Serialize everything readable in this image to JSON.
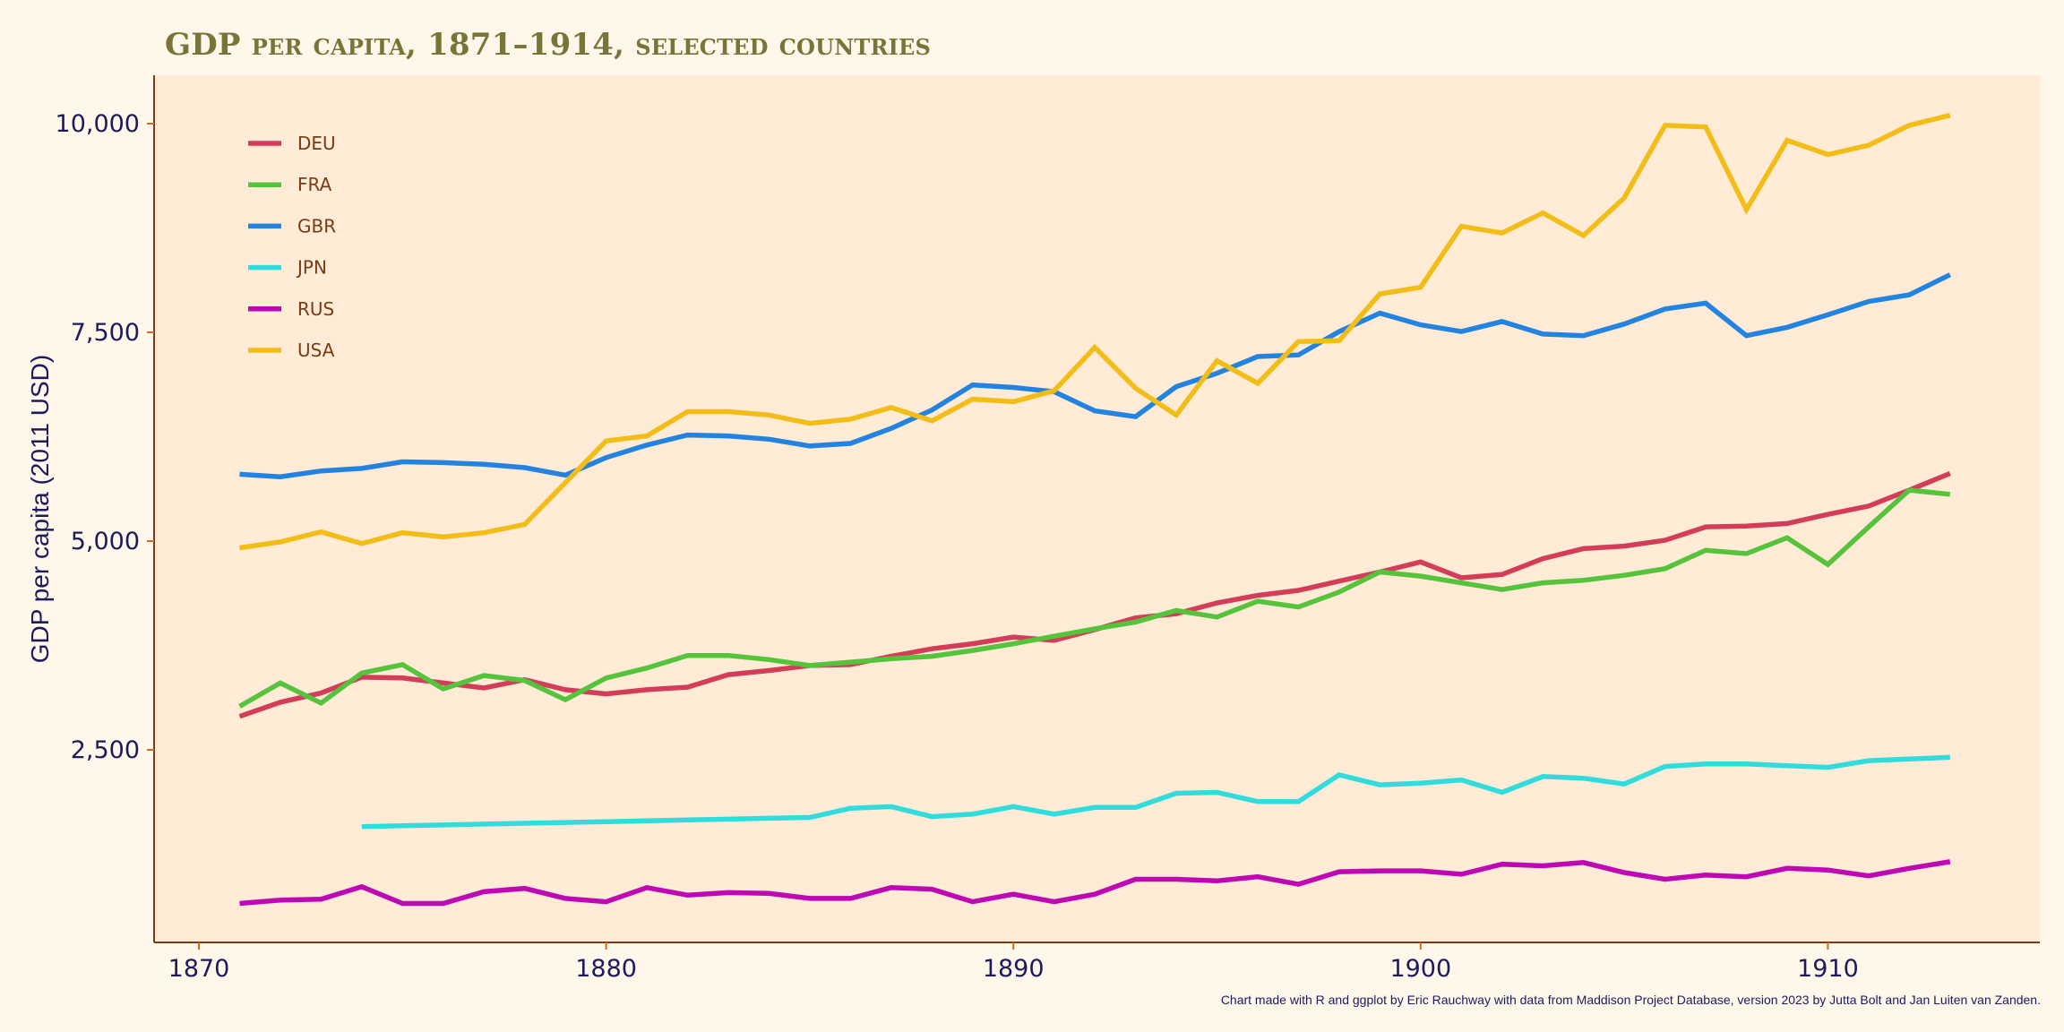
{
  "chart_data": {
    "type": "line",
    "title": "GDP per capita, 1871–1914, selected countries",
    "xlabel": "",
    "ylabel": "GDP per capita (2011 USD)",
    "xlim": [
      1868.9,
      1914.2
    ],
    "ylim": [
      0,
      10580
    ],
    "x_ticks": [
      1870,
      1880,
      1890,
      1900,
      1910
    ],
    "x_tick_labels": [
      "1870",
      "1880",
      "1890",
      "1900",
      "1910"
    ],
    "y_ticks": [
      2500,
      5000,
      7500,
      10000
    ],
    "y_tick_labels": [
      "2,500",
      "5,000",
      "7,500",
      "10,000"
    ],
    "grid": false,
    "legend_position": "top-left",
    "caption": "Chart made with R and ggplot by Eric Rauchway with data from Maddison Project Database, version 2023 by Jutta Bolt and Jan Luiten van Zanden.",
    "series": [
      {
        "name": "DEU",
        "color": "#d43d5a",
        "x": [
          1871,
          1872,
          1873,
          1874,
          1875,
          1876,
          1877,
          1878,
          1879,
          1880,
          1881,
          1882,
          1883,
          1884,
          1885,
          1886,
          1887,
          1888,
          1889,
          1890,
          1891,
          1892,
          1893,
          1894,
          1895,
          1896,
          1897,
          1898,
          1899,
          1900,
          1901,
          1902,
          1903,
          1904,
          1905,
          1906,
          1907,
          1908,
          1909,
          1910,
          1911,
          1912,
          1913
        ],
        "values": [
          2900,
          3070,
          3180,
          3370,
          3360,
          3300,
          3240,
          3340,
          3220,
          3170,
          3220,
          3250,
          3400,
          3450,
          3510,
          3520,
          3620,
          3710,
          3770,
          3850,
          3810,
          3940,
          4080,
          4130,
          4260,
          4350,
          4410,
          4520,
          4630,
          4750,
          4560,
          4600,
          4790,
          4910,
          4940,
          5010,
          5170,
          5180,
          5210,
          5320,
          5420,
          5610,
          5810
        ]
      },
      {
        "name": "FRA",
        "color": "#55c43c",
        "x": [
          1871,
          1872,
          1873,
          1874,
          1875,
          1876,
          1877,
          1878,
          1879,
          1880,
          1881,
          1882,
          1883,
          1884,
          1885,
          1886,
          1887,
          1888,
          1889,
          1890,
          1891,
          1892,
          1893,
          1894,
          1895,
          1896,
          1897,
          1898,
          1899,
          1900,
          1901,
          1902,
          1903,
          1904,
          1905,
          1906,
          1907,
          1908,
          1909,
          1910,
          1911,
          1912,
          1913
        ],
        "values": [
          3020,
          3300,
          3060,
          3420,
          3520,
          3230,
          3390,
          3330,
          3100,
          3360,
          3480,
          3630,
          3630,
          3580,
          3510,
          3550,
          3590,
          3620,
          3690,
          3770,
          3860,
          3950,
          4030,
          4170,
          4090,
          4280,
          4210,
          4390,
          4630,
          4580,
          4500,
          4420,
          4500,
          4530,
          4590,
          4670,
          4890,
          4850,
          5040,
          4720,
          5170,
          5610,
          5560
        ]
      },
      {
        "name": "GBR",
        "color": "#2283e0",
        "x": [
          1871,
          1872,
          1873,
          1874,
          1875,
          1876,
          1877,
          1878,
          1879,
          1880,
          1881,
          1882,
          1883,
          1884,
          1885,
          1886,
          1887,
          1888,
          1889,
          1890,
          1891,
          1892,
          1893,
          1894,
          1895,
          1896,
          1897,
          1898,
          1899,
          1900,
          1901,
          1902,
          1903,
          1904,
          1905,
          1906,
          1907,
          1908,
          1909,
          1910,
          1911,
          1912,
          1913
        ],
        "values": [
          5800,
          5770,
          5840,
          5870,
          5950,
          5940,
          5920,
          5880,
          5790,
          6000,
          6150,
          6270,
          6260,
          6220,
          6140,
          6170,
          6350,
          6570,
          6870,
          6840,
          6790,
          6560,
          6490,
          6850,
          7010,
          7210,
          7230,
          7510,
          7730,
          7590,
          7510,
          7630,
          7480,
          7460,
          7600,
          7780,
          7850,
          7460,
          7560,
          7710,
          7870,
          7950,
          8190
        ]
      },
      {
        "name": "JPN",
        "color": "#30dcdc",
        "x": [
          1874,
          1875,
          1876,
          1877,
          1878,
          1879,
          1880,
          1881,
          1882,
          1883,
          1884,
          1885,
          1886,
          1887,
          1888,
          1889,
          1890,
          1891,
          1892,
          1893,
          1894,
          1895,
          1896,
          1897,
          1898,
          1899,
          1900,
          1901,
          1902,
          1903,
          1904,
          1905,
          1906,
          1907,
          1908,
          1909,
          1910,
          1911,
          1912,
          1913
        ],
        "values": [
          1580,
          1590,
          1600,
          1610,
          1620,
          1630,
          1640,
          1650,
          1660,
          1670,
          1680,
          1690,
          1800,
          1820,
          1700,
          1730,
          1820,
          1730,
          1810,
          1810,
          1980,
          1990,
          1880,
          1880,
          2200,
          2080,
          2100,
          2140,
          1990,
          2180,
          2160,
          2090,
          2300,
          2330,
          2330,
          2310,
          2290,
          2370,
          2390,
          2410
        ]
      },
      {
        "name": "RUS",
        "color": "#be08b4",
        "x": [
          1871,
          1872,
          1873,
          1874,
          1875,
          1876,
          1877,
          1878,
          1879,
          1880,
          1881,
          1882,
          1883,
          1884,
          1885,
          1886,
          1887,
          1888,
          1889,
          1890,
          1891,
          1892,
          1893,
          1894,
          1895,
          1896,
          1897,
          1898,
          1899,
          1900,
          1901,
          1902,
          1903,
          1904,
          1905,
          1906,
          1907,
          1908,
          1909,
          1910,
          1911,
          1912,
          1913
        ],
        "values": [
          660,
          700,
          710,
          860,
          660,
          660,
          800,
          840,
          720,
          680,
          850,
          760,
          790,
          780,
          720,
          720,
          850,
          830,
          680,
          770,
          680,
          770,
          950,
          950,
          930,
          980,
          890,
          1040,
          1050,
          1050,
          1010,
          1130,
          1110,
          1150,
          1030,
          950,
          1000,
          980,
          1080,
          1060,
          990,
          1080,
          1160
        ]
      },
      {
        "name": "USA",
        "color": "#f2bd17",
        "x": [
          1871,
          1872,
          1873,
          1874,
          1875,
          1876,
          1877,
          1878,
          1879,
          1880,
          1881,
          1882,
          1883,
          1884,
          1885,
          1886,
          1887,
          1888,
          1889,
          1890,
          1891,
          1892,
          1893,
          1894,
          1895,
          1896,
          1897,
          1898,
          1899,
          1900,
          1901,
          1902,
          1903,
          1904,
          1905,
          1906,
          1907,
          1908,
          1909,
          1910,
          1911,
          1912,
          1913
        ],
        "values": [
          4920,
          4990,
          5110,
          4970,
          5100,
          5050,
          5100,
          5200,
          5700,
          6200,
          6260,
          6550,
          6550,
          6510,
          6410,
          6460,
          6600,
          6440,
          6700,
          6670,
          6800,
          7320,
          6830,
          6510,
          7160,
          6890,
          7390,
          7400,
          7960,
          8040,
          8770,
          8690,
          8930,
          8660,
          9110,
          9980,
          9960,
          8970,
          9800,
          9630,
          9740,
          9980,
          10100
        ]
      }
    ]
  },
  "header": {
    "title": "GDP per capita, 1871–1914, selected countries"
  },
  "footer": {
    "caption": "Chart made with R and ggplot by Eric Rauchway with data from Maddison Project Database, version 2023 by Jutta Bolt and Jan Luiten van Zanden."
  },
  "colors": {
    "page_background": "#fff7ea",
    "panel_background": "#ffebd6",
    "axis_line": "#7a3a14",
    "tick_mark": "#d2691e",
    "tick_label": "#1d1a5e",
    "title": "#7a7439",
    "legend_text": "#7a3a14"
  }
}
